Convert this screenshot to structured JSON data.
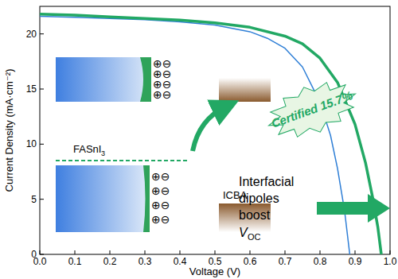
{
  "chart_data": {
    "type": "line",
    "x_label": "Voltage (V)",
    "y_label": "Current Density (mA·cm⁻²)",
    "annotations": [
      "Certified 15.7%",
      "Interfacial",
      "dipoles",
      "boost",
      "V",
      "OC",
      "FASnI",
      "3",
      "ICBA",
      "⊕⊖"
    ],
    "series": [
      {
        "color": "#2f7fd6",
        "x": [
          0,
          0.1,
          0.2,
          0.3,
          0.4,
          0.5,
          0.6,
          0.65,
          0.7,
          0.75,
          0.8,
          0.83,
          0.85,
          0.87,
          0.885
        ],
        "values": [
          21.6,
          21.5,
          21.4,
          21.3,
          21.1,
          20.8,
          20.2,
          19.6,
          18.7,
          17.0,
          13.8,
          10.8,
          7.8,
          4.0,
          0
        ]
      },
      {
        "color": "#22a864",
        "x": [
          0,
          0.1,
          0.2,
          0.3,
          0.4,
          0.5,
          0.6,
          0.7,
          0.75,
          0.8,
          0.85,
          0.9,
          0.93,
          0.95,
          0.965,
          0.975
        ],
        "values": [
          21.8,
          21.7,
          21.55,
          21.4,
          21.25,
          21.0,
          20.6,
          19.8,
          19.1,
          17.8,
          15.6,
          11.8,
          8.3,
          5.2,
          2.5,
          0
        ]
      }
    ],
    "xlim": [
      0,
      1.0
    ],
    "ylim": [
      0,
      22.5
    ],
    "xticks": [
      {
        "value": 0,
        "label": "0.0"
      },
      {
        "value": 0.1,
        "label": "0.1"
      },
      {
        "value": 0.2,
        "label": "0.2"
      },
      {
        "value": 0.3,
        "label": "0.3"
      },
      {
        "value": 0.4,
        "label": "0.4"
      },
      {
        "value": 0.5,
        "label": "0.5"
      },
      {
        "value": 0.6,
        "label": "0.6"
      },
      {
        "value": 0.7,
        "label": "0.7"
      },
      {
        "value": 0.8,
        "label": "0.8"
      },
      {
        "value": 0.9,
        "label": "0.9"
      },
      {
        "value": 1.0,
        "label": "1.0"
      }
    ],
    "yticks": [
      0,
      5,
      10,
      15,
      20
    ],
    "grid": false
  }
}
